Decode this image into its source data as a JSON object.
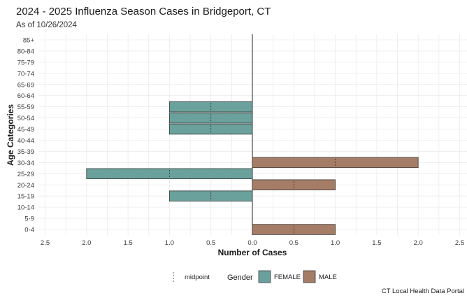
{
  "header": {
    "title": "2024 - 2025 Influenza Season Cases in Bridgeport, CT",
    "subtitle": "As of 10/26/2024",
    "caption": "CT Local Health Data Portal"
  },
  "colors": {
    "female": "#6aa19c",
    "male": "#a57c66",
    "bar_border": "#3b3b3b",
    "grid": "#ebebeb",
    "zero_line": "#222222"
  },
  "chart_data": {
    "type": "bar",
    "orientation": "horizontal-diverging",
    "title": "2024 - 2025 Influenza Season Cases in Bridgeport, CT",
    "subtitle": "As of 10/26/2024",
    "xlabel": "Number of Cases",
    "ylabel": "Age Categories",
    "xlim": [
      -2.5,
      2.5
    ],
    "x_ticks": [
      -2.5,
      -2.0,
      -1.5,
      -1.0,
      -0.5,
      0.0,
      0.5,
      1.0,
      1.5,
      2.0,
      2.5
    ],
    "x_tick_labels": [
      "2.5",
      "2.0",
      "1.5",
      "1.0",
      "0.5",
      "0.0",
      "0.5",
      "1.0",
      "1.5",
      "2.0",
      "2.5"
    ],
    "categories": [
      "85+",
      "80-84",
      "75-79",
      "70-74",
      "65-69",
      "60-64",
      "55-59",
      "50-54",
      "45-49",
      "40-44",
      "35-39",
      "30-34",
      "25-29",
      "20-24",
      "15-19",
      "10-14",
      "5-9",
      "0-4"
    ],
    "series": [
      {
        "name": "FEMALE",
        "direction": "left",
        "values": [
          0,
          0,
          0,
          0,
          0,
          0,
          1,
          1,
          1,
          0,
          0,
          0,
          2,
          0,
          1,
          0,
          0,
          0
        ]
      },
      {
        "name": "MALE",
        "direction": "right",
        "values": [
          0,
          0,
          0,
          0,
          0,
          0,
          0,
          0,
          0,
          0,
          0,
          2,
          0,
          1,
          0,
          0,
          0,
          1
        ]
      }
    ],
    "midpoint_markers": true,
    "grid": true,
    "legend": {
      "position": "bottom",
      "title": "Gender",
      "midpoint_label": "midpoint",
      "entries": [
        "FEMALE",
        "MALE"
      ]
    }
  }
}
